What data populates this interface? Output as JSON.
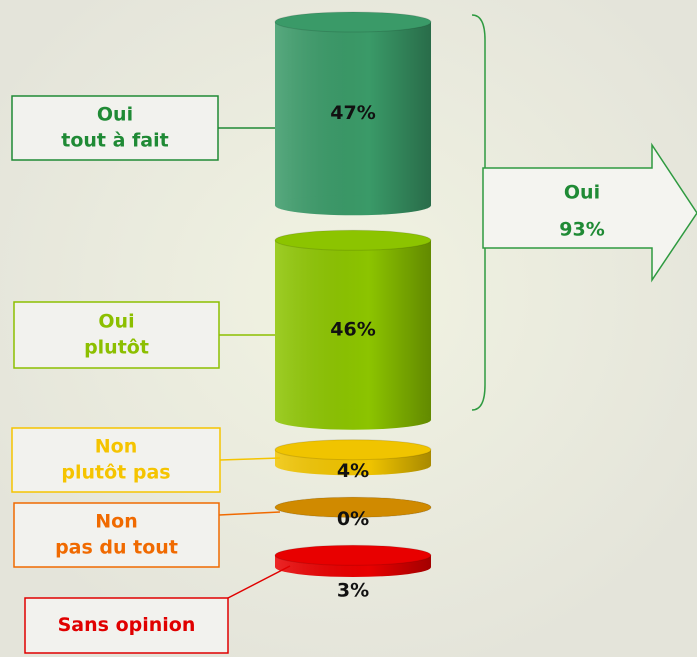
{
  "chart_data": {
    "type": "cylinder-stack",
    "categories": [
      [
        "Oui",
        "tout à fait"
      ],
      [
        "Oui",
        "plutôt"
      ],
      [
        "Non",
        "plutôt pas"
      ],
      [
        "Non",
        "pas du tout"
      ],
      [
        "Sans opinion"
      ]
    ],
    "values": [
      47,
      46,
      4,
      0,
      3
    ],
    "value_labels": [
      "47%",
      "46%",
      "4%",
      "0%",
      "3%"
    ],
    "colors": [
      "#3a9a68",
      "#8cc400",
      "#f0c400",
      "#d08a00",
      "#e80000"
    ],
    "label_colors": [
      "#1f8a35",
      "#8cbf00",
      "#f5c400",
      "#f06a00",
      "#e00000"
    ],
    "annotation": {
      "text": "Oui",
      "value": 93,
      "value_label": "93%",
      "color": "#1f8a35"
    }
  }
}
